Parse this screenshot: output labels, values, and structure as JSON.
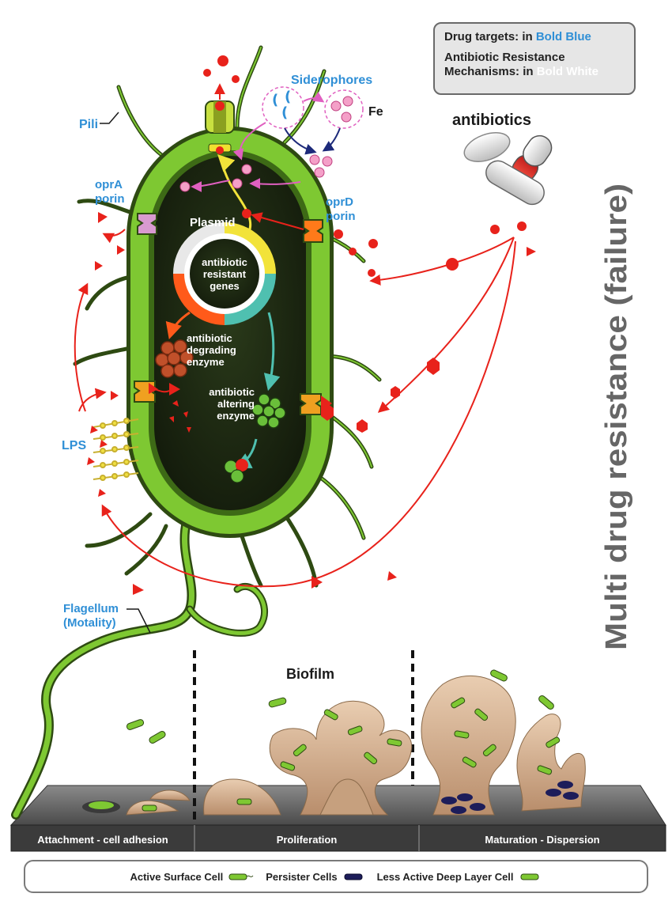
{
  "key": {
    "drug_targets_prefix": "Drug targets: in ",
    "drug_targets_style": "Bold Blue",
    "resistance_line1": "Antibiotic Resistance",
    "resistance_prefix": "Mechanisms: in ",
    "resistance_style": "Bold White"
  },
  "title_vertical": "Multi drug resistance (failure)",
  "labels": {
    "antibiotics": "antibiotics",
    "siderophores": "Siderophores",
    "fe": "Fe",
    "pili": "Pili",
    "opra_1": "oprA",
    "opra_2": "porin",
    "oprd_1": "oprD",
    "oprd_2": "porin",
    "plasmid": "Plasmid",
    "genes_1": "antibiotic",
    "genes_2": "resistant",
    "genes_3": "genes",
    "degrading_1": "antibiotic",
    "degrading_2": "degrading",
    "degrading_3": "enzyme",
    "altering_1": "antibiotic",
    "altering_2": "altering",
    "altering_3": "enzyme",
    "lps": "LPS",
    "flagellum_1": "Flagellum",
    "flagellum_2": "(Motality)",
    "biofilm": "Biofilm"
  },
  "stages": [
    "Attachment - cell adhesion",
    "Proliferation",
    "Maturation - Dispersion"
  ],
  "legend": {
    "active": "Active Surface Cell",
    "persister": "Persister Cells",
    "deep": "Less Active Deep Layer Cell"
  },
  "colors": {
    "cell_green": "#7ec832",
    "cell_dark": "#2e4a12",
    "cytoplasm": "#1f2a12",
    "antibiotic_red": "#e8221b",
    "drug_blue": "#2f8fd6",
    "biofilm_tan": "#d9b99a",
    "surface_grey": "#5c5c5c"
  }
}
